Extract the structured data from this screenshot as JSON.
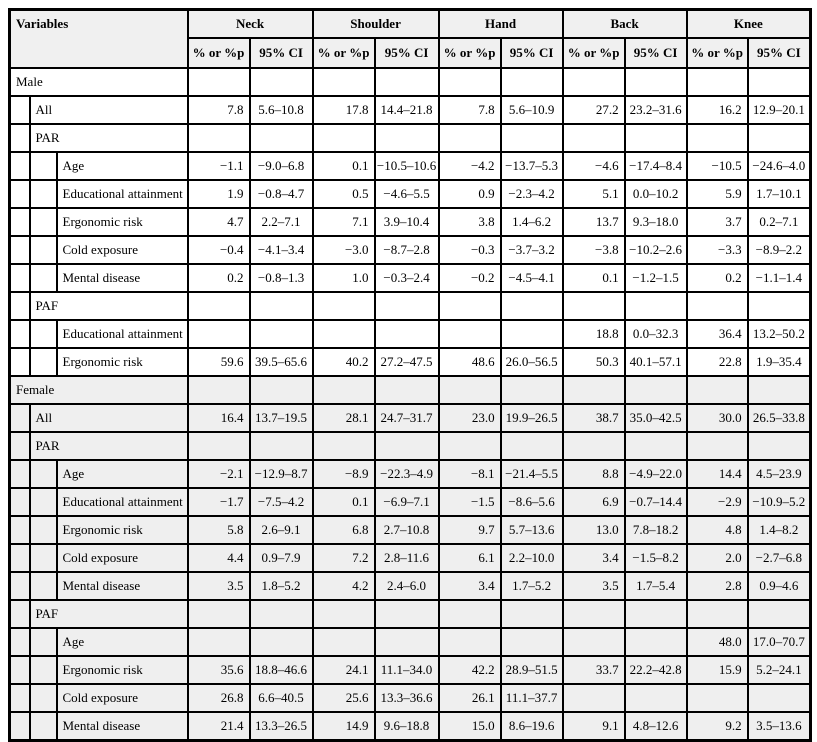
{
  "colors": {
    "header_bg": "#f0f0f0",
    "shaded_section_bg": "#efefef",
    "border": "#000000",
    "text": "#000000"
  },
  "table": {
    "variables_header": "Variables",
    "regions": [
      "Neck",
      "Shoulder",
      "Hand",
      "Back",
      "Knee"
    ],
    "subheaders": {
      "value": "% or %p",
      "ci": "95% CI"
    },
    "rows": [
      {
        "label": "Male",
        "level": 0,
        "shaded": false,
        "cells": [
          "",
          "",
          "",
          "",
          "",
          "",
          "",
          "",
          "",
          ""
        ]
      },
      {
        "label": "All",
        "level": 1,
        "shaded": false,
        "cells": [
          "7.8",
          "5.6–10.8",
          "17.8",
          "14.4–21.8",
          "7.8",
          "5.6–10.9",
          "27.2",
          "23.2–31.6",
          "16.2",
          "12.9–20.1"
        ]
      },
      {
        "label": "PAR",
        "level": 1,
        "shaded": false,
        "cells": [
          "",
          "",
          "",
          "",
          "",
          "",
          "",
          "",
          "",
          ""
        ]
      },
      {
        "label": "Age",
        "level": 2,
        "shaded": false,
        "cells": [
          "−1.1",
          "−9.0–6.8",
          "0.1",
          "−10.5–10.6",
          "−4.2",
          "−13.7–5.3",
          "−4.6",
          "−17.4–8.4",
          "−10.5",
          "−24.6–4.0"
        ]
      },
      {
        "label": "Educational attainment",
        "level": 2,
        "shaded": false,
        "cells": [
          "1.9",
          "−0.8–4.7",
          "0.5",
          "−4.6–5.5",
          "0.9",
          "−2.3–4.2",
          "5.1",
          "0.0–10.2",
          "5.9",
          "1.7–10.1"
        ]
      },
      {
        "label": "Ergonomic risk",
        "level": 2,
        "shaded": false,
        "cells": [
          "4.7",
          "2.2–7.1",
          "7.1",
          "3.9–10.4",
          "3.8",
          "1.4–6.2",
          "13.7",
          "9.3–18.0",
          "3.7",
          "0.2–7.1"
        ]
      },
      {
        "label": "Cold exposure",
        "level": 2,
        "shaded": false,
        "cells": [
          "−0.4",
          "−4.1–3.4",
          "−3.0",
          "−8.7–2.8",
          "−0.3",
          "−3.7–3.2",
          "−3.8",
          "−10.2–2.6",
          "−3.3",
          "−8.9–2.2"
        ]
      },
      {
        "label": "Mental disease",
        "level": 2,
        "shaded": false,
        "cells": [
          "0.2",
          "−0.8–1.3",
          "1.0",
          "−0.3–2.4",
          "−0.2",
          "−4.5–4.1",
          "0.1",
          "−1.2–1.5",
          "0.2",
          "−1.1–1.4"
        ]
      },
      {
        "label": "PAF",
        "level": 1,
        "shaded": false,
        "cells": [
          "",
          "",
          "",
          "",
          "",
          "",
          "",
          "",
          "",
          ""
        ]
      },
      {
        "label": "Educational attainment",
        "level": 2,
        "shaded": false,
        "cells": [
          "",
          "",
          "",
          "",
          "",
          "",
          "18.8",
          "0.0–32.3",
          "36.4",
          "13.2–50.2"
        ]
      },
      {
        "label": "Ergonomic risk",
        "level": 2,
        "shaded": false,
        "cells": [
          "59.6",
          "39.5–65.6",
          "40.2",
          "27.2–47.5",
          "48.6",
          "26.0–56.5",
          "50.3",
          "40.1–57.1",
          "22.8",
          "1.9–35.4"
        ]
      },
      {
        "label": "Female",
        "level": 0,
        "shaded": true,
        "cells": [
          "",
          "",
          "",
          "",
          "",
          "",
          "",
          "",
          "",
          ""
        ]
      },
      {
        "label": "All",
        "level": 1,
        "shaded": true,
        "cells": [
          "16.4",
          "13.7–19.5",
          "28.1",
          "24.7–31.7",
          "23.0",
          "19.9–26.5",
          "38.7",
          "35.0–42.5",
          "30.0",
          "26.5–33.8"
        ]
      },
      {
        "label": "PAR",
        "level": 1,
        "shaded": true,
        "cells": [
          "",
          "",
          "",
          "",
          "",
          "",
          "",
          "",
          "",
          ""
        ]
      },
      {
        "label": "Age",
        "level": 2,
        "shaded": true,
        "cells": [
          "−2.1",
          "−12.9–8.7",
          "−8.9",
          "−22.3–4.9",
          "−8.1",
          "−21.4–5.5",
          "8.8",
          "−4.9–22.0",
          "14.4",
          "4.5–23.9"
        ]
      },
      {
        "label": "Educational attainment",
        "level": 2,
        "shaded": true,
        "cells": [
          "−1.7",
          "−7.5–4.2",
          "0.1",
          "−6.9–7.1",
          "−1.5",
          "−8.6–5.6",
          "6.9",
          "−0.7–14.4",
          "−2.9",
          "−10.9–5.2"
        ]
      },
      {
        "label": "Ergonomic risk",
        "level": 2,
        "shaded": true,
        "cells": [
          "5.8",
          "2.6–9.1",
          "6.8",
          "2.7–10.8",
          "9.7",
          "5.7–13.6",
          "13.0",
          "7.8–18.2",
          "4.8",
          "1.4–8.2"
        ]
      },
      {
        "label": "Cold exposure",
        "level": 2,
        "shaded": true,
        "cells": [
          "4.4",
          "0.9–7.9",
          "7.2",
          "2.8–11.6",
          "6.1",
          "2.2–10.0",
          "3.4",
          "−1.5–8.2",
          "2.0",
          "−2.7–6.8"
        ]
      },
      {
        "label": "Mental disease",
        "level": 2,
        "shaded": true,
        "cells": [
          "3.5",
          "1.8–5.2",
          "4.2",
          "2.4–6.0",
          "3.4",
          "1.7–5.2",
          "3.5",
          "1.7–5.4",
          "2.8",
          "0.9–4.6"
        ]
      },
      {
        "label": "PAF",
        "level": 1,
        "shaded": true,
        "cells": [
          "",
          "",
          "",
          "",
          "",
          "",
          "",
          "",
          "",
          ""
        ]
      },
      {
        "label": "Age",
        "level": 2,
        "shaded": true,
        "cells": [
          "",
          "",
          "",
          "",
          "",
          "",
          "",
          "",
          "48.0",
          "17.0–70.7"
        ]
      },
      {
        "label": "Ergonomic risk",
        "level": 2,
        "shaded": true,
        "cells": [
          "35.6",
          "18.8–46.6",
          "24.1",
          "11.1–34.0",
          "42.2",
          "28.9–51.5",
          "33.7",
          "22.2–42.8",
          "15.9",
          "5.2–24.1"
        ]
      },
      {
        "label": "Cold exposure",
        "level": 2,
        "shaded": true,
        "cells": [
          "26.8",
          "6.6–40.5",
          "25.6",
          "13.3–36.6",
          "26.1",
          "11.1–37.7",
          "",
          "",
          "",
          ""
        ]
      },
      {
        "label": "Mental disease",
        "level": 2,
        "shaded": true,
        "cells": [
          "21.4",
          "13.3–26.5",
          "14.9",
          "9.6–18.8",
          "15.0",
          "8.6–19.6",
          "9.1",
          "4.8–12.6",
          "9.2",
          "3.5–13.6"
        ]
      }
    ]
  }
}
